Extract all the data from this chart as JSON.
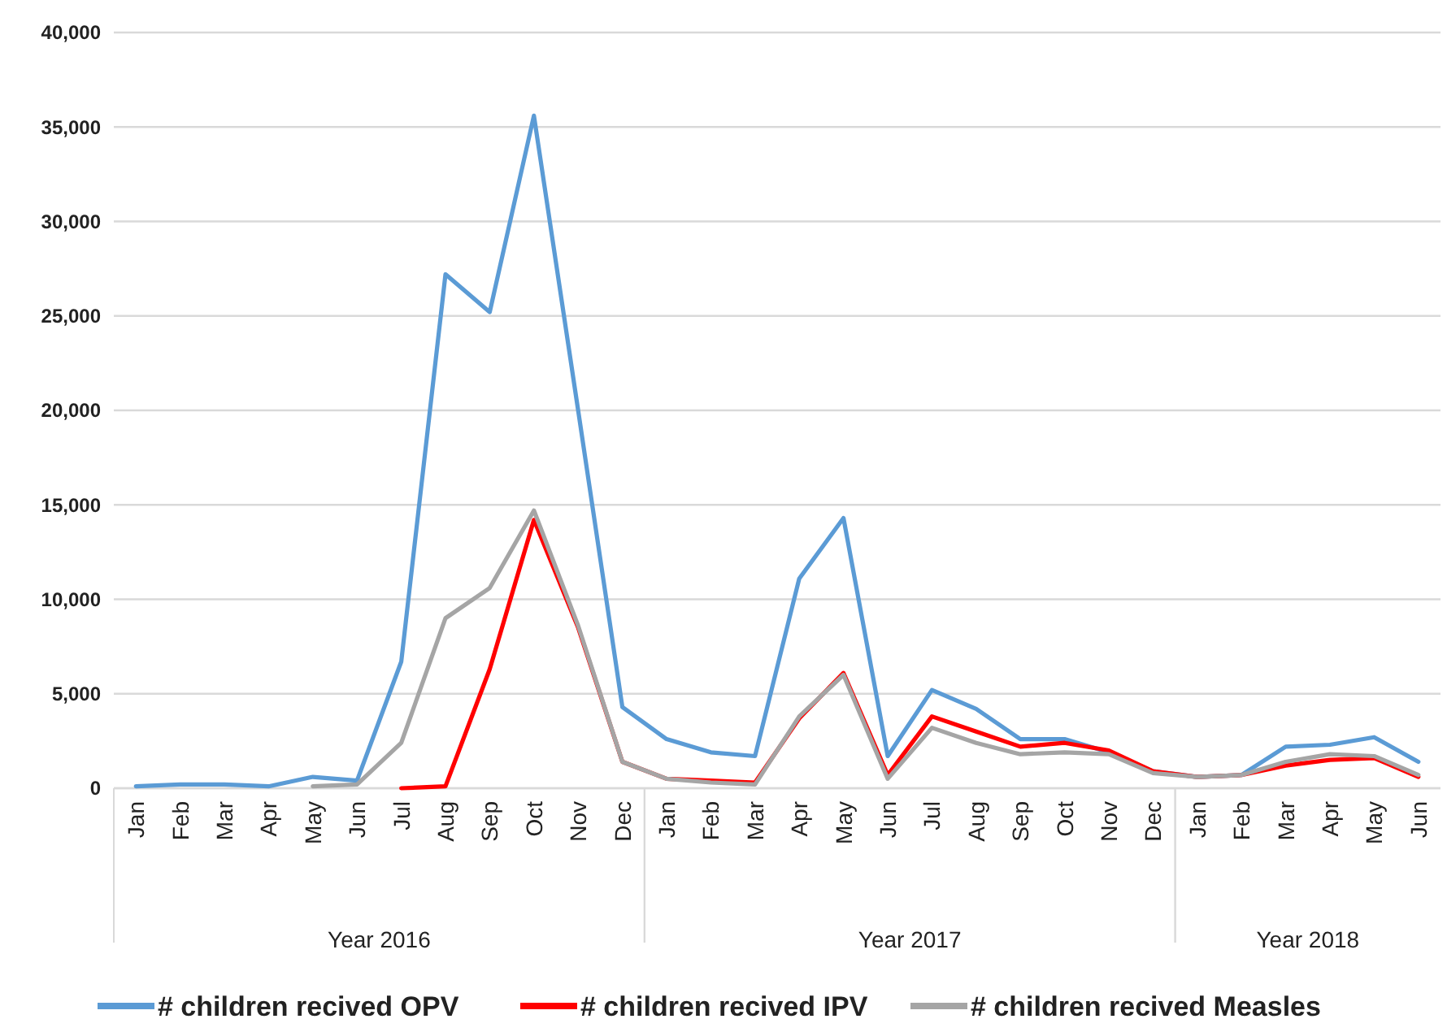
{
  "chart_data": {
    "type": "line",
    "categories": [
      "Jan",
      "Feb",
      "Mar",
      "Apr",
      "May",
      "Jun",
      "Jul",
      "Aug",
      "Sep",
      "Oct",
      "Nov",
      "Dec",
      "Jan",
      "Feb",
      "Mar",
      "Apr",
      "May",
      "Jun",
      "Jul",
      "Aug",
      "Sep",
      "Oct",
      "Nov",
      "Dec",
      "Jan",
      "Feb",
      "Mar",
      "Apr",
      "May",
      "Jun"
    ],
    "series": [
      {
        "name": "# children recived OPV",
        "color": "#5b9bd5",
        "values": [
          100,
          200,
          200,
          100,
          600,
          400,
          6700,
          27200,
          25200,
          35600,
          20000,
          4300,
          2600,
          1900,
          1700,
          11100,
          14300,
          1700,
          5200,
          4200,
          2600,
          2600,
          1900,
          900,
          600,
          700,
          2200,
          2300,
          2700,
          1400
        ]
      },
      {
        "name": "# children recived IPV",
        "color": "#ff0000",
        "values": [
          null,
          null,
          null,
          null,
          null,
          null,
          0,
          100,
          6300,
          14200,
          8500,
          1400,
          500,
          400,
          300,
          3700,
          6100,
          700,
          3800,
          3000,
          2200,
          2400,
          2000,
          900,
          600,
          700,
          1200,
          1500,
          1600,
          600
        ]
      },
      {
        "name": "# children recived Measles",
        "color": "#a5a5a5",
        "values": [
          null,
          null,
          null,
          null,
          100,
          200,
          2400,
          9000,
          10600,
          14700,
          8600,
          1400,
          500,
          300,
          200,
          3800,
          6000,
          500,
          3200,
          2400,
          1800,
          1900,
          1800,
          800,
          600,
          700,
          1400,
          1800,
          1700,
          700
        ]
      }
    ],
    "ylim": [
      0,
      40000
    ],
    "yticks": [
      {
        "value": 0,
        "label": "0"
      },
      {
        "value": 5000,
        "label": "5,000"
      },
      {
        "value": 10000,
        "label": "10,000"
      },
      {
        "value": 15000,
        "label": "15,000"
      },
      {
        "value": 20000,
        "label": "20,000"
      },
      {
        "value": 25000,
        "label": "25,000"
      },
      {
        "value": 30000,
        "label": "30,000"
      },
      {
        "value": 35000,
        "label": "35,000"
      },
      {
        "value": 40000,
        "label": "40,000"
      }
    ],
    "grid": "y",
    "legend": "bottom",
    "marker": "none",
    "line_style": "solid",
    "annotations": [
      "Year 2016",
      "Year 2017",
      "Year 2018"
    ]
  }
}
